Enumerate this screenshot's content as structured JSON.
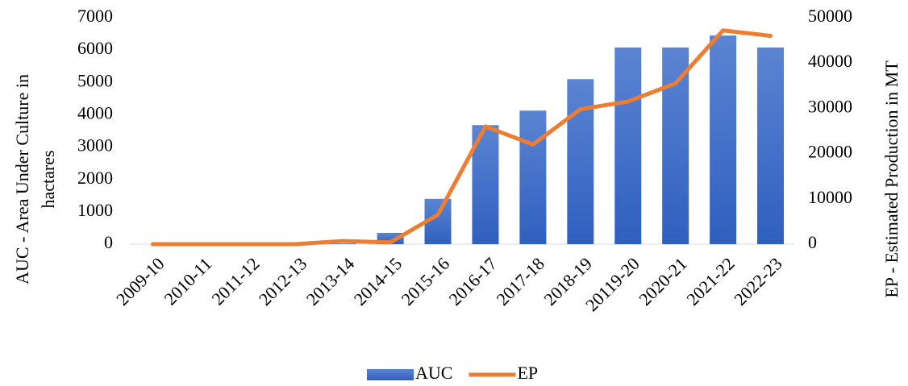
{
  "chart_data": {
    "type": "bar-line",
    "categories": [
      "2009-10",
      "2010-11",
      "2011-12",
      "2012-13",
      "2013-14",
      "2014-15",
      "2015-16",
      "2016-17",
      "2017-18",
      "2018-19",
      "20119-20",
      "2020-21",
      "2021-22",
      "2022-23"
    ],
    "series": [
      {
        "name": "AUC",
        "type": "bar",
        "color": "#4472c4",
        "values": [
          0,
          0,
          0,
          0,
          20,
          350,
          1400,
          3680,
          4130,
          5100,
          6080,
          6080,
          6450,
          6080
        ]
      },
      {
        "name": "EP",
        "type": "line",
        "axis": "y2",
        "color": "#ed7d31",
        "values": [
          0,
          0,
          0,
          0,
          700,
          400,
          6500,
          26000,
          22000,
          29800,
          31500,
          35500,
          47200,
          46000
        ]
      }
    ],
    "ylabel": [
      "AUC - Area Under Culture in",
      "hactares"
    ],
    "y2label": "EP - Estimated Production in MT",
    "ylim": [
      0,
      7000
    ],
    "yticks": [
      0,
      1000,
      2000,
      3000,
      4000,
      5000,
      6000,
      7000
    ],
    "y2lim": [
      0,
      50000
    ],
    "y2ticks": [
      0,
      10000,
      20000,
      30000,
      40000,
      50000
    ],
    "grid": false,
    "legend": "bottom"
  }
}
